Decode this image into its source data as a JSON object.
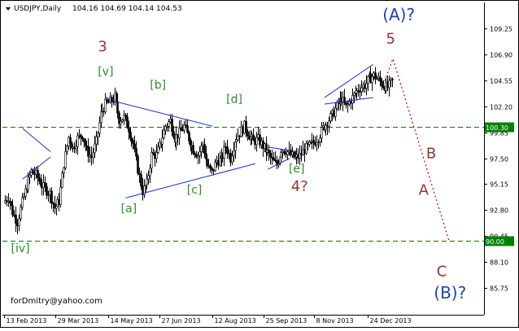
{
  "header": {
    "symbol": "USDJPY,Daily",
    "ohlc": "104.16 104.69 104.14 104.53"
  },
  "watermark": "forDmitry@yahoo.com",
  "chart_data": {
    "type": "candlestick",
    "ylim": [
      84.6,
      111.5
    ],
    "y_ticks": [
      "109.25",
      "106.90",
      "104.55",
      "102.20",
      "99.85",
      "97.50",
      "95.15",
      "92.80",
      "90.45",
      "88.10",
      "85.75"
    ],
    "x_ticks": [
      "13 Feb 2013",
      "29 Mar 2013",
      "14 May 2013",
      "27 Jun 2013",
      "12 Aug 2013",
      "25 Sep 2013",
      "8 Nov 2013",
      "24 Dec 2013"
    ],
    "levels": [
      {
        "value": 100.3,
        "label": "100.30",
        "color": "#008000"
      },
      {
        "value": 90.0,
        "label": "90.00",
        "color": "#008000"
      }
    ],
    "candle_path": [
      [
        "13 Feb 2013",
        93.5
      ],
      [
        "17 Feb 2013",
        94.0
      ],
      [
        "21 Feb 2013",
        92.6
      ],
      [
        "25 Feb 2013",
        91.7
      ],
      [
        "1 Mar 2013",
        93.5
      ],
      [
        "5 Mar 2013",
        95.0
      ],
      [
        "9 Mar 2013",
        96.3
      ],
      [
        "13 Mar 2013",
        96.0
      ],
      [
        "17 Mar 2013",
        95.2
      ],
      [
        "21 Mar 2013",
        94.7
      ],
      [
        "25 Mar 2013",
        94.3
      ],
      [
        "29 Mar 2013",
        93.0
      ],
      [
        "2 Apr 2013",
        93.6
      ],
      [
        "6 Apr 2013",
        97.0
      ],
      [
        "10 Apr 2013",
        99.4
      ],
      [
        "14 Apr 2013",
        98.4
      ],
      [
        "18 Apr 2013",
        99.3
      ],
      [
        "22 Apr 2013",
        99.6
      ],
      [
        "26 Apr 2013",
        98.2
      ],
      [
        "30 Apr 2013",
        97.6
      ],
      [
        "4 May 2013",
        99.0
      ],
      [
        "8 May 2013",
        101.5
      ],
      [
        "12 May 2013",
        102.4
      ],
      [
        "16 May 2013",
        102.6
      ],
      [
        "20 May 2013",
        103.0
      ],
      [
        "24 May 2013",
        101.0
      ],
      [
        "28 May 2013",
        101.2
      ],
      [
        "1 Jun 2013",
        100.2
      ],
      [
        "5 Jun 2013",
        98.8
      ],
      [
        "9 Jun 2013",
        96.5
      ],
      [
        "13 Jun 2013",
        94.5
      ],
      [
        "17 Jun 2013",
        95.2
      ],
      [
        "21 Jun 2013",
        97.8
      ],
      [
        "25 Jun 2013",
        97.8
      ],
      [
        "29 Jun 2013",
        99.0
      ],
      [
        "3 Jul 2013",
        100.4
      ],
      [
        "7 Jul 2013",
        100.9
      ],
      [
        "11 Jul 2013",
        99.3
      ],
      [
        "15 Jul 2013",
        99.8
      ],
      [
        "19 Jul 2013",
        100.4
      ],
      [
        "23 Jul 2013",
        99.3
      ],
      [
        "27 Jul 2013",
        98.3
      ],
      [
        "31 Jul 2013",
        97.8
      ],
      [
        "4 Aug 2013",
        98.8
      ],
      [
        "8 Aug 2013",
        96.8
      ],
      [
        "12 Aug 2013",
        96.2
      ],
      [
        "16 Aug 2013",
        97.3
      ],
      [
        "20 Aug 2013",
        97.3
      ],
      [
        "24 Aug 2013",
        98.6
      ],
      [
        "28 Aug 2013",
        97.5
      ],
      [
        "1 Sep 2013",
        99.2
      ],
      [
        "5 Sep 2013",
        99.8
      ],
      [
        "9 Sep 2013",
        100.4
      ],
      [
        "13 Sep 2013",
        99.6
      ],
      [
        "17 Sep 2013",
        99.0
      ],
      [
        "21 Sep 2013",
        99.2
      ],
      [
        "25 Sep 2013",
        98.6
      ],
      [
        "29 Sep 2013",
        98.0
      ],
      [
        "3 Oct 2013",
        97.3
      ],
      [
        "7 Oct 2013",
        96.9
      ],
      [
        "11 Oct 2013",
        98.3
      ],
      [
        "15 Oct 2013",
        98.2
      ],
      [
        "19 Oct 2013",
        97.8
      ],
      [
        "23 Oct 2013",
        97.5
      ],
      [
        "27 Oct 2013",
        97.7
      ],
      [
        "31 Oct 2013",
        98.3
      ],
      [
        "4 Nov 2013",
        98.6
      ],
      [
        "8 Nov 2013",
        98.9
      ],
      [
        "12 Nov 2013",
        99.4
      ],
      [
        "16 Nov 2013",
        100.2
      ],
      [
        "20 Nov 2013",
        100.8
      ],
      [
        "24 Nov 2013",
        101.4
      ],
      [
        "28 Nov 2013",
        102.2
      ],
      [
        "2 Dec 2013",
        102.9
      ],
      [
        "6 Dec 2013",
        102.1
      ],
      [
        "10 Dec 2013",
        102.8
      ],
      [
        "14 Dec 2013",
        103.4
      ],
      [
        "18 Dec 2013",
        103.9
      ],
      [
        "22 Dec 2013",
        104.1
      ],
      [
        "26 Dec 2013",
        104.7
      ],
      [
        "30 Dec 2013",
        105.0
      ],
      [
        "3 Jan 2014",
        104.6
      ],
      [
        "7 Jan 2014",
        104.1
      ],
      [
        "11 Jan 2014",
        103.9
      ],
      [
        "15 Jan 2014",
        104.5
      ]
    ],
    "triangles": [
      {
        "name": "[a]-[e] triangle",
        "lines": [
          [
            [
              "14 May 2013",
              102.8
            ],
            [
              "12 Aug 2013",
              100.4
            ]
          ],
          [
            [
              "29 May 2013",
              93.9
            ],
            [
              "18 Sep 2013",
              97.0
            ]
          ]
        ]
      },
      {
        "name": "[e] triangle",
        "lines": [
          [
            [
              "29 Sep 2013",
              98.5
            ],
            [
              "18 Oct 2013",
              98.2
            ]
          ],
          [
            [
              "29 Sep 2013",
              96.5
            ],
            [
              "18 Oct 2013",
              97.5
            ]
          ]
        ]
      },
      {
        "name": "wedge",
        "lines": [
          [
            [
              "17 Nov 2013",
              103.0
            ],
            [
              "29 Dec 2013",
              106.0
            ]
          ],
          [
            [
              "17 Nov 2013",
              102.4
            ],
            [
              "29 Dec 2013",
              103.0
            ]
          ]
        ]
      },
      {
        "name": "early flag",
        "lines": [
          [
            [
              "1 Mar 2013",
              100.2
            ],
            [
              "25 Mar 2013",
              98.1
            ]
          ],
          [
            [
              "1 Mar 2013",
              95.6
            ],
            [
              "25 Mar 2013",
              97.6
            ]
          ]
        ]
      }
    ],
    "forecast": {
      "color": "#cc0000",
      "points": [
        [
          "8 Jan 2014",
          104.5
        ],
        [
          "15 Jan 2014",
          106.5
        ],
        [
          "15 Mar 2014",
          90.0
        ]
      ]
    },
    "annotations": [
      {
        "text": "[iv]",
        "x": "19 Feb 2013",
        "y": 89.0,
        "color": "#2e8b2e",
        "size": 14
      },
      {
        "text": "3",
        "x": "5 May 2013",
        "y": 107.2,
        "color": "#993333",
        "size": 18
      },
      {
        "text": "[v]",
        "x": "5 May 2013",
        "y": 105.0,
        "color": "#2e8b2e",
        "size": 14
      },
      {
        "text": "[a]",
        "x": "25 May 2013",
        "y": 92.6,
        "color": "#2e8b2e",
        "size": 14
      },
      {
        "text": "[b]",
        "x": "19 Jun 2013",
        "y": 103.8,
        "color": "#2e8b2e",
        "size": 14
      },
      {
        "text": "[c]",
        "x": "21 Jul 2013",
        "y": 94.3,
        "color": "#2e8b2e",
        "size": 14
      },
      {
        "text": "[d]",
        "x": "24 Aug 2013",
        "y": 102.5,
        "color": "#2e8b2e",
        "size": 14
      },
      {
        "text": "[e]",
        "x": "17 Oct 2013",
        "y": 96.2,
        "color": "#2e8b2e",
        "size": 14
      },
      {
        "text": "4?",
        "x": "19 Oct 2013",
        "y": 94.5,
        "color": "#993333",
        "size": 18
      },
      {
        "text": "5",
        "x": "9 Jan 2014",
        "y": 107.9,
        "color": "#993333",
        "size": 18
      },
      {
        "text": "(A)?",
        "x": "6 Jan 2014",
        "y": 110.0,
        "color": "#1f3fbf",
        "size": 20
      },
      {
        "text": "B",
        "x": "19 Feb 2014",
        "y": 97.5,
        "color": "#993333",
        "size": 18
      },
      {
        "text": "A",
        "x": "11 Feb 2014",
        "y": 94.2,
        "color": "#993333",
        "size": 18
      },
      {
        "text": "C",
        "x": "2 Mar 2014",
        "y": 86.8,
        "color": "#993333",
        "size": 18
      },
      {
        "text": "(B)?",
        "x": "27 Feb 2014",
        "y": 84.8,
        "color": "#1f3fbf",
        "size": 20
      }
    ]
  }
}
